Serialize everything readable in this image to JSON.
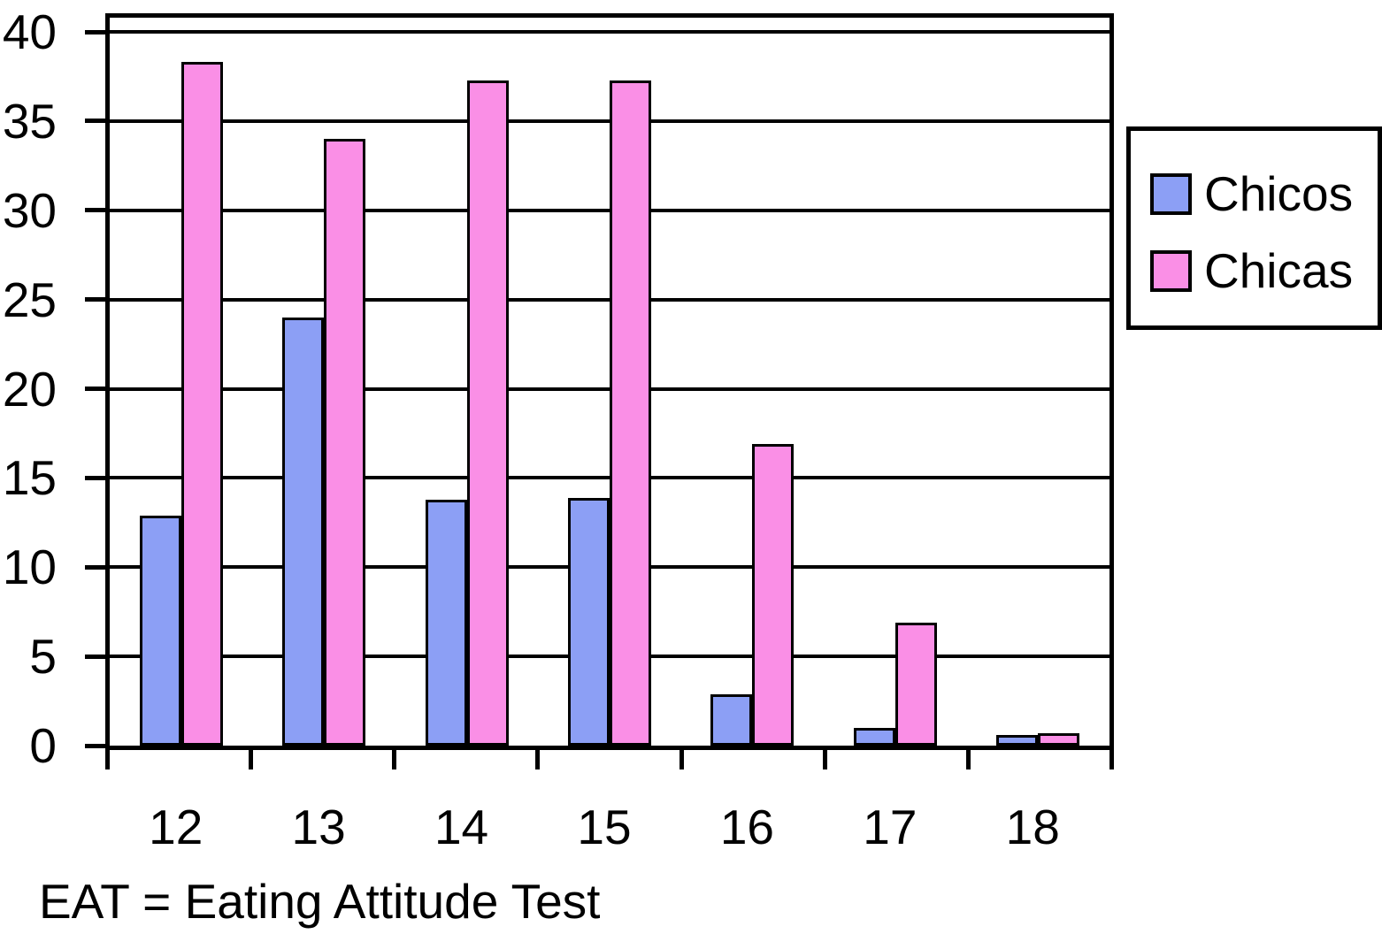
{
  "chart_data": {
    "type": "bar",
    "title": "",
    "xlabel": "",
    "ylabel": "",
    "categories": [
      "12",
      "13",
      "14",
      "15",
      "16",
      "17",
      "18"
    ],
    "series": [
      {
        "name": "Chicos",
        "color": "#8C9FF5",
        "values": [
          12.9,
          24.0,
          13.8,
          13.9,
          2.9,
          1.0,
          0.6
        ]
      },
      {
        "name": "Chicas",
        "color": "#FA8FE6",
        "values": [
          38.3,
          34.0,
          37.3,
          37.3,
          16.9,
          6.9,
          0.7
        ]
      }
    ],
    "ylim": [
      0,
      40
    ],
    "yticks": [
      0,
      5,
      10,
      15,
      20,
      25,
      30,
      35,
      40
    ],
    "grid": {
      "horizontal": true,
      "vertical": false
    },
    "legend": {
      "position": "right",
      "entries": [
        "Chicos",
        "Chicas"
      ]
    },
    "caption": "EAT = Eating Attitude Test",
    "colors": {
      "axis": "#000000",
      "background": "#FFFFFF",
      "bar_outline": "#000000"
    }
  }
}
